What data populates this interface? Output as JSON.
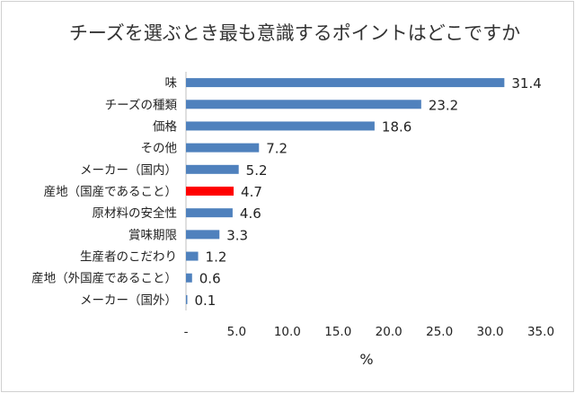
{
  "chart_data": {
    "type": "bar",
    "orientation": "horizontal",
    "title": "チーズを選ぶとき最も意識するポイントはどこですか",
    "xlabel": "%",
    "ylabel": "",
    "xlim": [
      0,
      35
    ],
    "x_ticks": [
      "-",
      "5.0",
      "10.0",
      "15.0",
      "20.0",
      "25.0",
      "30.0",
      "35.0"
    ],
    "categories": [
      "味",
      "チーズの種類",
      "価格",
      "その他",
      "メーカー（国内）",
      "産地（国産であること）",
      "原材料の安全性",
      "賞味期限",
      "生産者のこだわり",
      "産地（外国産であること）",
      "メーカー（国外）"
    ],
    "values": [
      31.4,
      23.2,
      18.6,
      7.2,
      5.2,
      4.7,
      4.6,
      3.3,
      1.2,
      0.6,
      0.1
    ],
    "value_labels": [
      "31.4",
      "23.2",
      "18.6",
      "7.2",
      "5.2",
      "4.7",
      "4.6",
      "3.3",
      "1.2",
      "0.6",
      "0.1"
    ],
    "colors": {
      "bar": "#4f81bd",
      "highlight": "#ff0000",
      "axis": "#bfbfbf"
    },
    "highlight_index": 5,
    "grid": false,
    "legend": "none"
  }
}
